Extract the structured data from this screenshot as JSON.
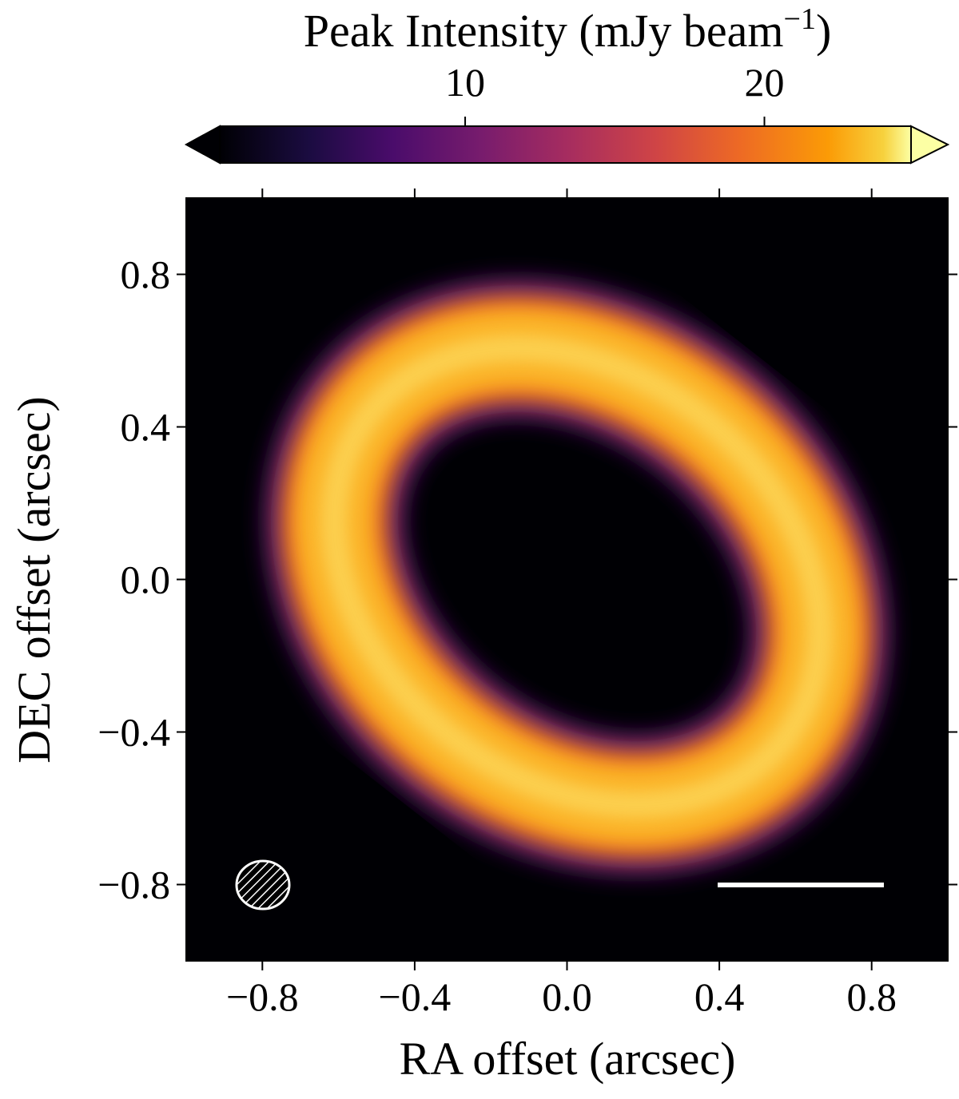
{
  "chart_data": {
    "type": "image",
    "x_label": "RA offset (arcsec)",
    "y_label": "DEC offset (arcsec)",
    "xlim": [
      -1.0,
      1.0
    ],
    "ylim": [
      -1.0,
      1.0
    ],
    "xticks": [
      {
        "value": -0.8,
        "label": "−0.8"
      },
      {
        "value": -0.4,
        "label": "−0.4"
      },
      {
        "value": 0.0,
        "label": "0.0"
      },
      0.4,
      0.8
    ],
    "yticks": [
      {
        "value": -0.8,
        "label": "−0.8"
      },
      {
        "value": -0.4,
        "label": "−0.4"
      },
      {
        "value": 0.0,
        "label": "0.0"
      },
      0.4,
      0.8
    ],
    "colorbar": {
      "label": "Peak Intensity (mJy beam",
      "label_exponent": "−1",
      "label_close": ")",
      "clim": [
        1.8,
        24.9
      ],
      "ticks": [
        10,
        20
      ]
    }
  }
}
